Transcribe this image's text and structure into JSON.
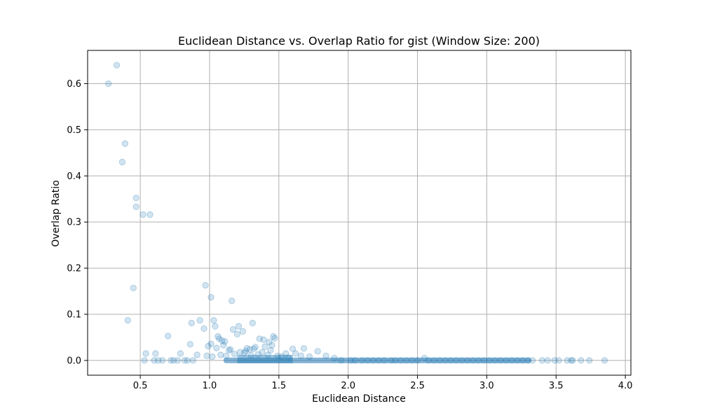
{
  "chart_data": {
    "type": "scatter",
    "title": "Euclidean Distance vs. Overlap Ratio for gist (Window Size: 200)",
    "xlabel": "Euclidean Distance",
    "ylabel": "Overlap Ratio",
    "xlim": [
      0.12,
      4.04
    ],
    "ylim": [
      -0.032,
      0.672
    ],
    "xticks": [
      "0.5",
      "1.0",
      "1.5",
      "2.0",
      "2.5",
      "3.0",
      "3.5",
      "4.0"
    ],
    "yticks": [
      "0.0",
      "0.1",
      "0.2",
      "0.3",
      "0.4",
      "0.5",
      "0.6"
    ],
    "grid": true,
    "marker_color": "#1f77b4",
    "marker_alpha": 0.2,
    "points": {
      "x": [
        0.27,
        0.33,
        0.37,
        0.39,
        0.47,
        0.47,
        0.52,
        0.57,
        0.45,
        0.41,
        0.97,
        1.01,
        1.16,
        0.93,
        0.87,
        1.03,
        1.04,
        0.96,
        1.21,
        1.31,
        1.17,
        1.24,
        1.2,
        1.06,
        1.07,
        1.11,
        1.01,
        0.99,
        1.05,
        1.09,
        1.14,
        1.22,
        1.27,
        1.33,
        1.36,
        1.39,
        1.43,
        1.46,
        1.47,
        1.45,
        1.4,
        1.29,
        0.7,
        0.86,
        0.54,
        0.61,
        0.79,
        0.91,
        0.98,
        1.02,
        1.08,
        1.12,
        1.18,
        1.25,
        1.3,
        1.35,
        1.42,
        1.49,
        1.55,
        1.6,
        1.66,
        1.72,
        1.78,
        1.84,
        1.9,
        0.53,
        0.63,
        0.74,
        0.82,
        0.88,
        1.62,
        1.68,
        1.52,
        1.57,
        1.44,
        1.38,
        1.32,
        1.26,
        1.15,
        1.1,
        0.6,
        0.66,
        0.72,
        0.77,
        0.84,
        1.95,
        2.02,
        2.1,
        2.18,
        2.26,
        2.34,
        2.42,
        2.5,
        2.58,
        2.66,
        2.74,
        2.82,
        2.9,
        2.98,
        3.06,
        3.14,
        3.22,
        3.3,
        3.33,
        3.4,
        3.44,
        3.49,
        3.52,
        3.58,
        3.62,
        3.68,
        3.74,
        3.85,
        2.05,
        2.14,
        2.22,
        2.31,
        2.38,
        2.46,
        2.55,
        2.62,
        2.7,
        2.78,
        2.86,
        2.94,
        3.02,
        3.1,
        3.18,
        3.26,
        3.61
      ],
      "y": [
        0.6,
        0.64,
        0.43,
        0.47,
        0.352,
        0.333,
        0.316,
        0.316,
        0.157,
        0.087,
        0.163,
        0.137,
        0.129,
        0.087,
        0.081,
        0.087,
        0.074,
        0.069,
        0.074,
        0.081,
        0.067,
        0.063,
        0.057,
        0.052,
        0.047,
        0.041,
        0.036,
        0.031,
        0.027,
        0.043,
        0.022,
        0.018,
        0.026,
        0.029,
        0.047,
        0.045,
        0.04,
        0.052,
        0.048,
        0.033,
        0.03,
        0.024,
        0.053,
        0.035,
        0.015,
        0.015,
        0.015,
        0.012,
        0.01,
        0.008,
        0.012,
        0.01,
        0.014,
        0.016,
        0.011,
        0.013,
        0.012,
        0.01,
        0.015,
        0.025,
        0.01,
        0.008,
        0.02,
        0.01,
        0.005,
        0.0,
        0.0,
        0.0,
        0.0,
        0.0,
        0.015,
        0.026,
        0.008,
        0.006,
        0.022,
        0.018,
        0.025,
        0.02,
        0.024,
        0.033,
        0.0,
        0.0,
        0.0,
        0.0,
        0.0,
        0.0,
        0.0,
        0.0,
        0.0,
        0.0,
        0.0,
        0.0,
        0.0,
        0.0,
        0.0,
        0.0,
        0.0,
        0.0,
        0.0,
        0.0,
        0.0,
        0.0,
        0.0,
        0.0,
        0.0,
        0.0,
        0.0,
        0.0,
        0.0,
        0.0,
        0.0,
        0.0,
        0.0,
        0.0,
        0.0,
        0.0,
        0.0,
        0.0,
        0.0,
        0.005,
        0.0,
        0.0,
        0.0,
        0.0,
        0.0,
        0.0,
        0.0,
        0.0,
        0.0,
        0.0
      ]
    }
  }
}
